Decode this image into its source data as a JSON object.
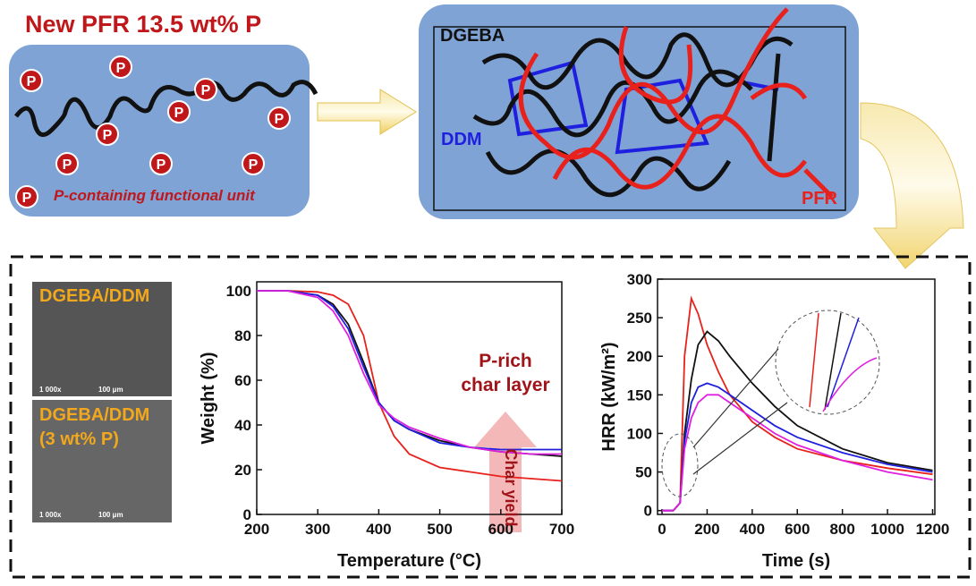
{
  "header": {
    "title": "New PFR 13.5 wt% P"
  },
  "left_panel": {
    "p_symbol": "P",
    "legend": "P-containing functional unit"
  },
  "network_panel": {
    "labels": [
      "DGEBA",
      "DDM",
      "PFR"
    ]
  },
  "sem_images": [
    {
      "label": "DGEBA/DDM",
      "magnification": "1 000x",
      "scale": "100 μm"
    },
    {
      "label": "DGEBA/DDM (3 wt% P)",
      "magnification": "1 000x",
      "scale": "100 μm"
    }
  ],
  "chart_data": [
    {
      "type": "line",
      "x_label": "Temperature (°C)",
      "y_label": "Weight (%)",
      "annotations": [
        "P-rich",
        "char layer",
        "Char yield"
      ],
      "x": [
        200,
        250,
        300,
        325,
        350,
        375,
        400,
        425,
        450,
        500,
        550,
        600,
        650,
        700
      ],
      "series": [
        {
          "color": "#e8211c",
          "values": [
            100,
            100,
            99.5,
            98,
            94,
            80,
            50,
            35,
            27,
            21,
            19,
            17,
            16,
            15
          ]
        },
        {
          "color": "#111111",
          "values": [
            100,
            100,
            98,
            94,
            85,
            68,
            50,
            42,
            38,
            33,
            30,
            28,
            27,
            26
          ]
        },
        {
          "color": "#1f1fe0",
          "values": [
            100,
            100,
            98,
            93,
            83,
            66,
            50,
            42,
            38,
            32,
            30,
            29,
            29,
            29
          ]
        },
        {
          "color": "#e020e0",
          "values": [
            100,
            100,
            97,
            91,
            80,
            63,
            49,
            43,
            39,
            34,
            30,
            28,
            27,
            27
          ]
        }
      ],
      "xlim": [
        200,
        700
      ],
      "ylim": [
        0,
        104
      ],
      "xticks": [
        200,
        300,
        400,
        500,
        600,
        700
      ],
      "yticks": [
        0,
        20,
        40,
        60,
        80,
        100
      ]
    },
    {
      "type": "line",
      "x_label": "Time (s)",
      "y_label": "HRR (kW/m²)",
      "x": [
        0,
        50,
        80,
        100,
        130,
        160,
        200,
        250,
        300,
        400,
        500,
        600,
        800,
        1000,
        1200
      ],
      "series": [
        {
          "color": "#e8211c",
          "values": [
            0,
            0,
            10,
            200,
            275,
            255,
            215,
            180,
            150,
            115,
            95,
            80,
            65,
            55,
            47
          ]
        },
        {
          "color": "#111111",
          "values": [
            0,
            0,
            10,
            100,
            170,
            215,
            232,
            220,
            200,
            165,
            135,
            110,
            80,
            62,
            52
          ]
        },
        {
          "color": "#1f1fe0",
          "values": [
            0,
            0,
            10,
            90,
            140,
            160,
            165,
            160,
            150,
            130,
            110,
            95,
            75,
            60,
            50
          ]
        },
        {
          "color": "#e020e0",
          "values": [
            0,
            0,
            10,
            80,
            120,
            140,
            150,
            150,
            140,
            120,
            100,
            85,
            65,
            50,
            40
          ]
        }
      ],
      "xlim": [
        -20,
        1210
      ],
      "ylim": [
        -5,
        300
      ],
      "xticks": [
        0,
        200,
        400,
        600,
        800,
        1000,
        1200
      ],
      "yticks": [
        0,
        50,
        100,
        150,
        200,
        250,
        300
      ]
    }
  ]
}
